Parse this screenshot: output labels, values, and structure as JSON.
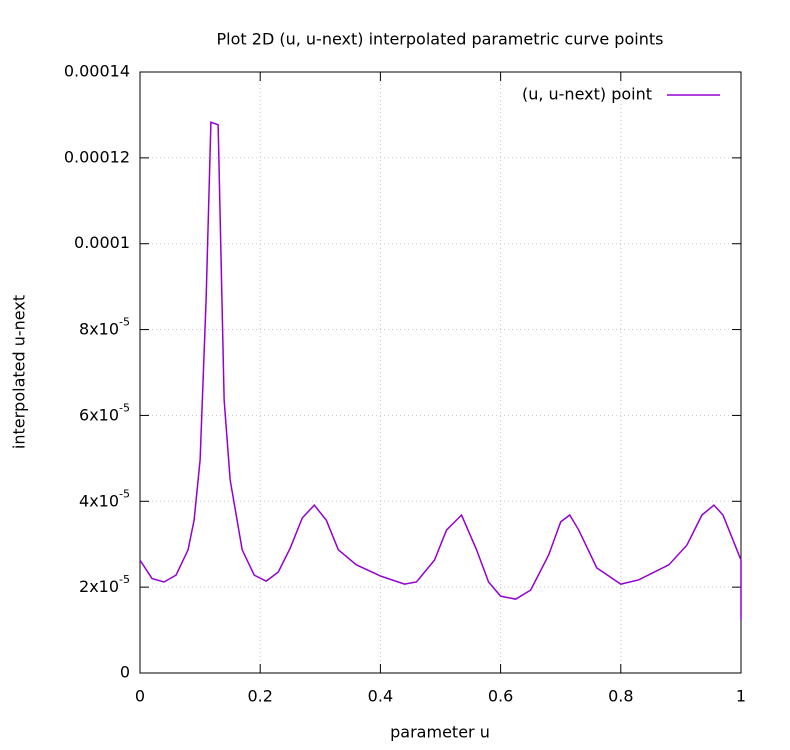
{
  "chart_data": {
    "type": "line",
    "title": "Plot 2D (u, u-next) interpolated parametric curve points",
    "xlabel": "parameter u",
    "ylabel": "interpolated u-next",
    "x": [
      0,
      0.02,
      0.04,
      0.06,
      0.08,
      0.09,
      0.1,
      0.11,
      0.118,
      0.13,
      0.14,
      0.15,
      0.17,
      0.19,
      0.21,
      0.23,
      0.25,
      0.27,
      0.29,
      0.31,
      0.33,
      0.36,
      0.4,
      0.44,
      0.46,
      0.49,
      0.51,
      0.535,
      0.56,
      0.58,
      0.6,
      0.625,
      0.65,
      0.68,
      0.7,
      0.715,
      0.73,
      0.76,
      0.8,
      0.83,
      0.88,
      0.91,
      0.935,
      0.955,
      0.97,
      0.99,
      1.0,
      1.0
    ],
    "series": [
      {
        "name": "(u, u-next) point",
        "color": "#9400d3",
        "values": [
          2.63e-05,
          2.2e-05,
          2.12e-05,
          2.28e-05,
          2.87e-05,
          3.56e-05,
          4.96e-05,
          8.7e-05,
          0.0001283,
          0.0001277,
          6.36e-05,
          4.5e-05,
          2.87e-05,
          2.28e-05,
          2.14e-05,
          2.35e-05,
          2.91e-05,
          3.61e-05,
          3.91e-05,
          3.56e-05,
          2.87e-05,
          2.52e-05,
          2.26e-05,
          2.07e-05,
          2.12e-05,
          2.63e-05,
          3.33e-05,
          3.68e-05,
          2.87e-05,
          2.12e-05,
          1.79e-05,
          1.72e-05,
          1.93e-05,
          2.75e-05,
          3.52e-05,
          3.68e-05,
          3.33e-05,
          2.45e-05,
          2.07e-05,
          2.17e-05,
          2.52e-05,
          2.98e-05,
          3.68e-05,
          3.91e-05,
          3.68e-05,
          2.98e-05,
          2.63e-05,
          1.23e-05
        ]
      }
    ],
    "xlim": [
      0,
      1
    ],
    "xticks": [
      0,
      0.2,
      0.4,
      0.6,
      0.8,
      1
    ],
    "ylim": [
      0,
      0.00014
    ],
    "yticks": [
      0,
      {
        "value": 2e-05,
        "label": "2x10-5"
      },
      {
        "value": 4e-05,
        "label": "4x10-5"
      },
      {
        "value": 6e-05,
        "label": "6x10-5"
      },
      {
        "value": 8e-05,
        "label": "8x10-5"
      },
      0.0001,
      0.00012,
      0.00014
    ],
    "grid": true,
    "legend": "top-right"
  }
}
